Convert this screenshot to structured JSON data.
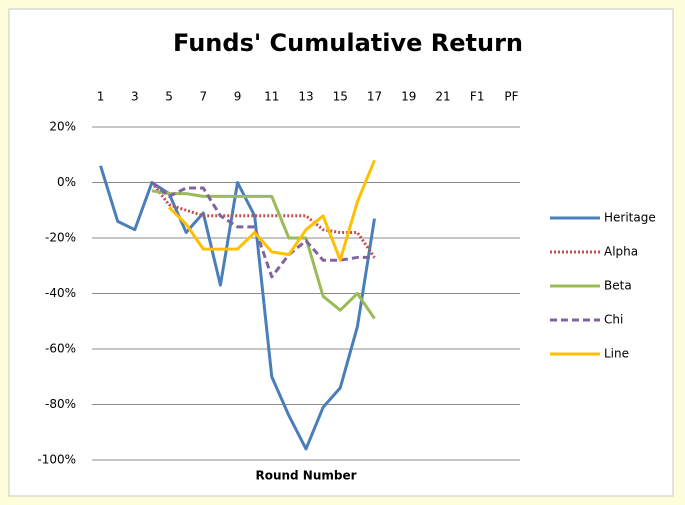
{
  "chart_data": {
    "type": "line",
    "title": "Funds' Cumulative Return",
    "x_label": "Round Number",
    "categories": [
      "1",
      null,
      "3",
      null,
      "5",
      null,
      "7",
      null,
      "9",
      null,
      "11",
      null,
      "13",
      null,
      "15",
      null,
      "17",
      null,
      "19",
      null,
      "21",
      null,
      "F1",
      null,
      "PF"
    ],
    "ylim": [
      -100,
      20
    ],
    "yticks": [
      {
        "value": -100,
        "label": "-100%"
      },
      {
        "value": -80,
        "label": "-80%"
      },
      {
        "value": -60,
        "label": "-60%"
      },
      {
        "value": -40,
        "label": "-40%"
      },
      {
        "value": -20,
        "label": "-20%"
      },
      {
        "value": 0,
        "label": "0%"
      },
      {
        "value": 20,
        "label": "20%"
      }
    ],
    "grid": true,
    "legend": "right",
    "series": [
      {
        "name": "Heritage",
        "color": "#4a7ebb",
        "dash": "solid",
        "values": [
          6,
          -14,
          -17,
          0,
          -4,
          -18,
          -11,
          -37,
          0,
          -12,
          -70,
          -84,
          -96,
          -81,
          -74,
          -52,
          -13,
          null,
          null,
          null,
          null,
          null,
          null,
          null,
          null
        ]
      },
      {
        "name": "Alpha",
        "color": "#c0504d",
        "dash": "dotted",
        "values": [
          null,
          null,
          null,
          0,
          -8,
          -10,
          -12,
          -12,
          -12,
          -12,
          -12,
          -12,
          -12,
          -17,
          -18,
          -18,
          -27,
          null,
          null,
          null,
          null,
          null,
          null,
          null,
          null
        ]
      },
      {
        "name": "Beta",
        "color": "#9bbb59",
        "dash": "solid",
        "values": [
          null,
          null,
          null,
          -3,
          -4,
          -4,
          -5,
          -5,
          -5,
          -5,
          -5,
          -20,
          -20,
          -41,
          -46,
          -40,
          -49,
          null,
          null,
          null,
          null,
          null,
          null,
          null,
          null
        ]
      },
      {
        "name": "Chi",
        "color": "#8064a2",
        "dash": "dashed",
        "values": [
          null,
          null,
          null,
          0,
          -5,
          -2,
          -2,
          -12,
          -16,
          -16,
          -34,
          -26,
          -21,
          -28,
          -28,
          -27,
          -27,
          null,
          null,
          null,
          null,
          null,
          null,
          null,
          null
        ]
      },
      {
        "name": "Line",
        "color": "#ffc000",
        "dash": "solid",
        "values": [
          null,
          null,
          null,
          null,
          -9,
          -15,
          -24,
          -24,
          -24,
          -18,
          -25,
          -26,
          -17,
          -12,
          -28,
          -7,
          8,
          null,
          null,
          null,
          null,
          null,
          null,
          null,
          null
        ]
      }
    ]
  }
}
